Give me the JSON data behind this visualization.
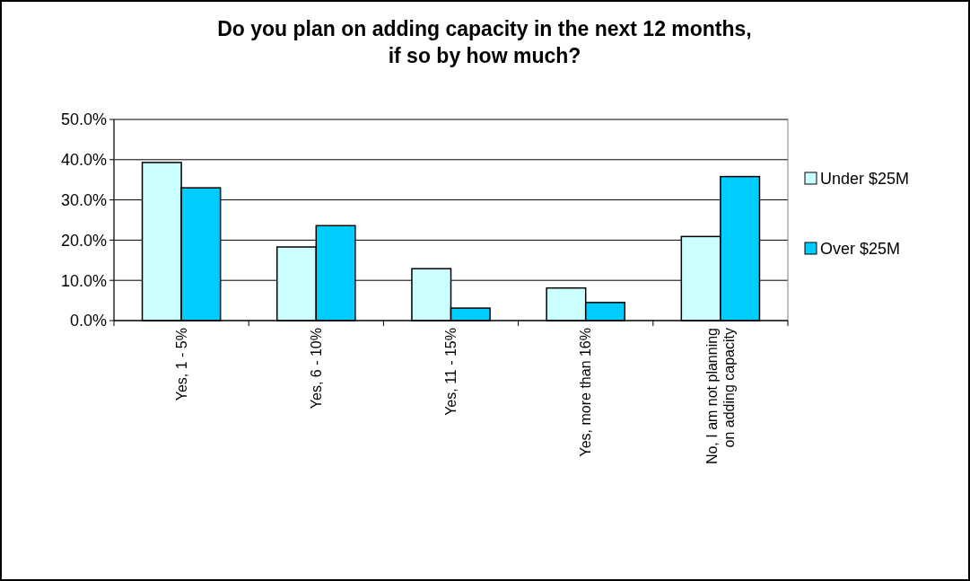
{
  "chart_data": {
    "type": "bar",
    "title": "Do you plan on adding capacity in the next 12 months,\nif so by how much?",
    "categories": [
      "Yes, 1 - 5%",
      "Yes, 6 - 10%",
      "Yes, 11 - 15%",
      "Yes, more than 16%",
      "No, I am not planning\non adding capacity"
    ],
    "series": [
      {
        "name": "Under $25M",
        "color": "#ccffff",
        "values": [
          39.3,
          18.3,
          12.9,
          8.1,
          20.9
        ]
      },
      {
        "name": "Over $25M",
        "color": "#00ccff",
        "values": [
          33.0,
          23.6,
          3.1,
          4.5,
          35.8
        ]
      }
    ],
    "ylim": [
      0,
      50
    ],
    "yticks": [
      {
        "value": 0,
        "label": "0.0%"
      },
      {
        "value": 10,
        "label": "10.0%"
      },
      {
        "value": 20,
        "label": "20.0%"
      },
      {
        "value": 30,
        "label": "30.0%"
      },
      {
        "value": 40,
        "label": "40.0%"
      },
      {
        "value": 50,
        "label": "50.0%"
      }
    ],
    "grid": "y",
    "legend": "right"
  }
}
